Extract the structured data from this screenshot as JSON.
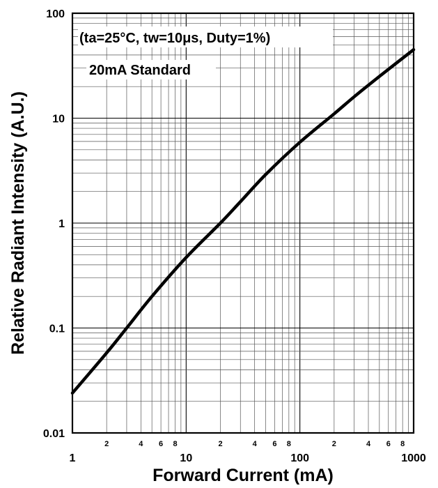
{
  "chart_data": {
    "type": "line",
    "title": "",
    "annotations": [
      "(ta=25°C, tw=10μs, Duty=1%)",
      "20mA Standard"
    ],
    "xlabel": "Forward Current (mA)",
    "ylabel": "Relative Radiant Intensity (A.U.)",
    "x_scale": "log",
    "y_scale": "log",
    "xlim": [
      1,
      1000
    ],
    "ylim": [
      0.01,
      100
    ],
    "grid": true,
    "x_ticks_major": [
      "1",
      "10",
      "100",
      "1000"
    ],
    "x_ticks_minor": [
      "2",
      "4",
      "6",
      "8",
      "2",
      "4",
      "6",
      "8",
      "2",
      "4",
      "6",
      "8"
    ],
    "y_ticks_major": [
      "100",
      "10",
      "1",
      "0.1",
      "0.01"
    ],
    "series": [
      {
        "x": [
          1,
          2,
          3,
          5,
          10,
          20,
          30,
          50,
          100,
          200,
          300,
          500,
          1000
        ],
        "y": [
          0.024,
          0.058,
          0.1,
          0.2,
          0.47,
          1.0,
          1.6,
          2.9,
          5.9,
          11,
          16,
          25,
          45
        ]
      }
    ]
  }
}
